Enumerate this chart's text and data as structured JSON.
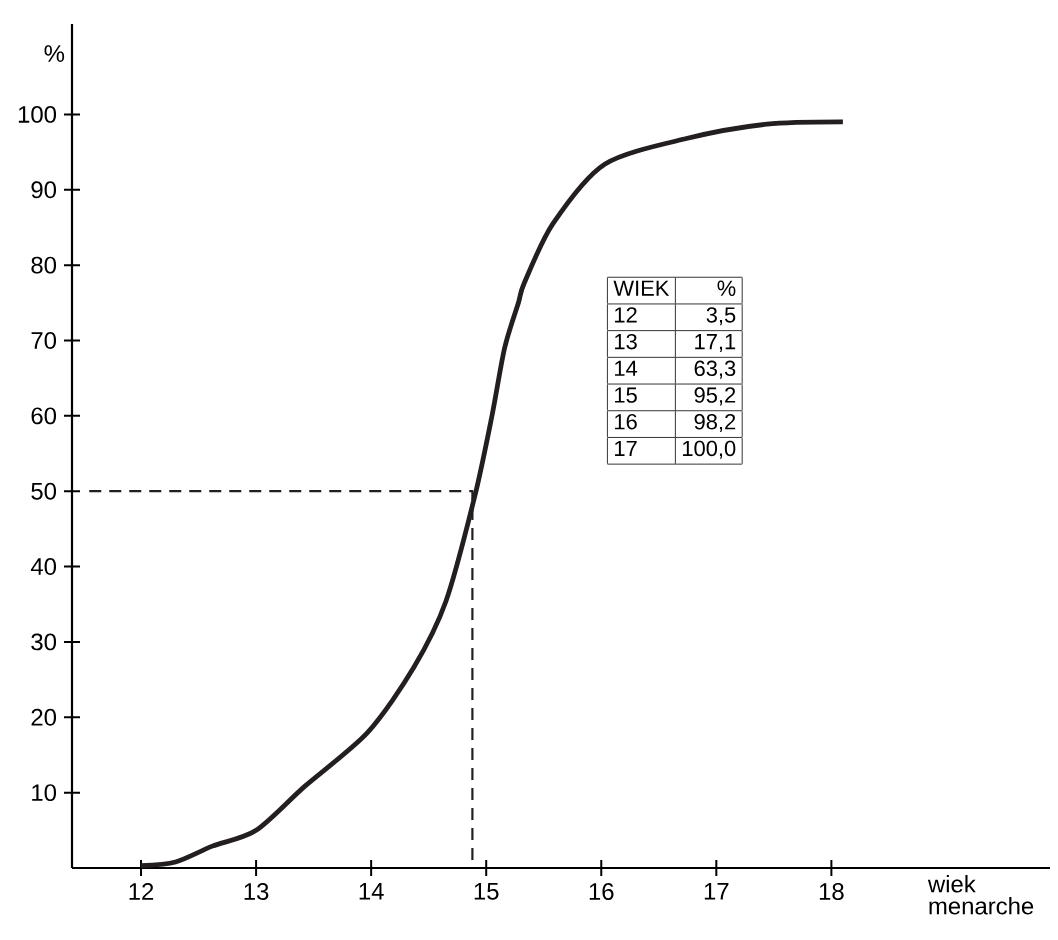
{
  "chart_data": {
    "type": "line",
    "xlabel": "wiek menarche",
    "ylabel": "%",
    "xlim": [
      11.4,
      19.9
    ],
    "ylim": [
      0,
      112
    ],
    "xticks": [
      12,
      13,
      14,
      15,
      16,
      17,
      18
    ],
    "yticks": [
      10,
      20,
      30,
      40,
      50,
      60,
      70,
      80,
      90,
      100
    ],
    "series": [
      {
        "color": "#231f20",
        "x": [
          12.0,
          12.3,
          12.62,
          13.0,
          13.42,
          13.97,
          14.37,
          14.65,
          14.9,
          15.05,
          15.16,
          15.28,
          15.33,
          15.58,
          16.03,
          16.74,
          17.44,
          18.1
        ],
        "values": [
          0.3,
          0.8,
          2.9,
          5,
          10.8,
          18,
          26.6,
          35.4,
          49.3,
          60,
          69,
          75,
          77.6,
          85.5,
          93.4,
          96.8,
          98.7,
          99
        ]
      },
      {
        "color": "#231f20",
        "line_style": "dashed",
        "x": [
          11.55,
          14.88,
          14.88
        ],
        "values": [
          50,
          50,
          0
        ]
      }
    ],
    "annotations": [
      "WIEK",
      "%",
      "12",
      "3,5",
      "13",
      "17,1",
      "14",
      "63,3",
      "15",
      "95,2",
      "16",
      "98,2",
      "17",
      "100,0"
    ],
    "grid": false,
    "marker": "none",
    "line_style": "solid"
  }
}
